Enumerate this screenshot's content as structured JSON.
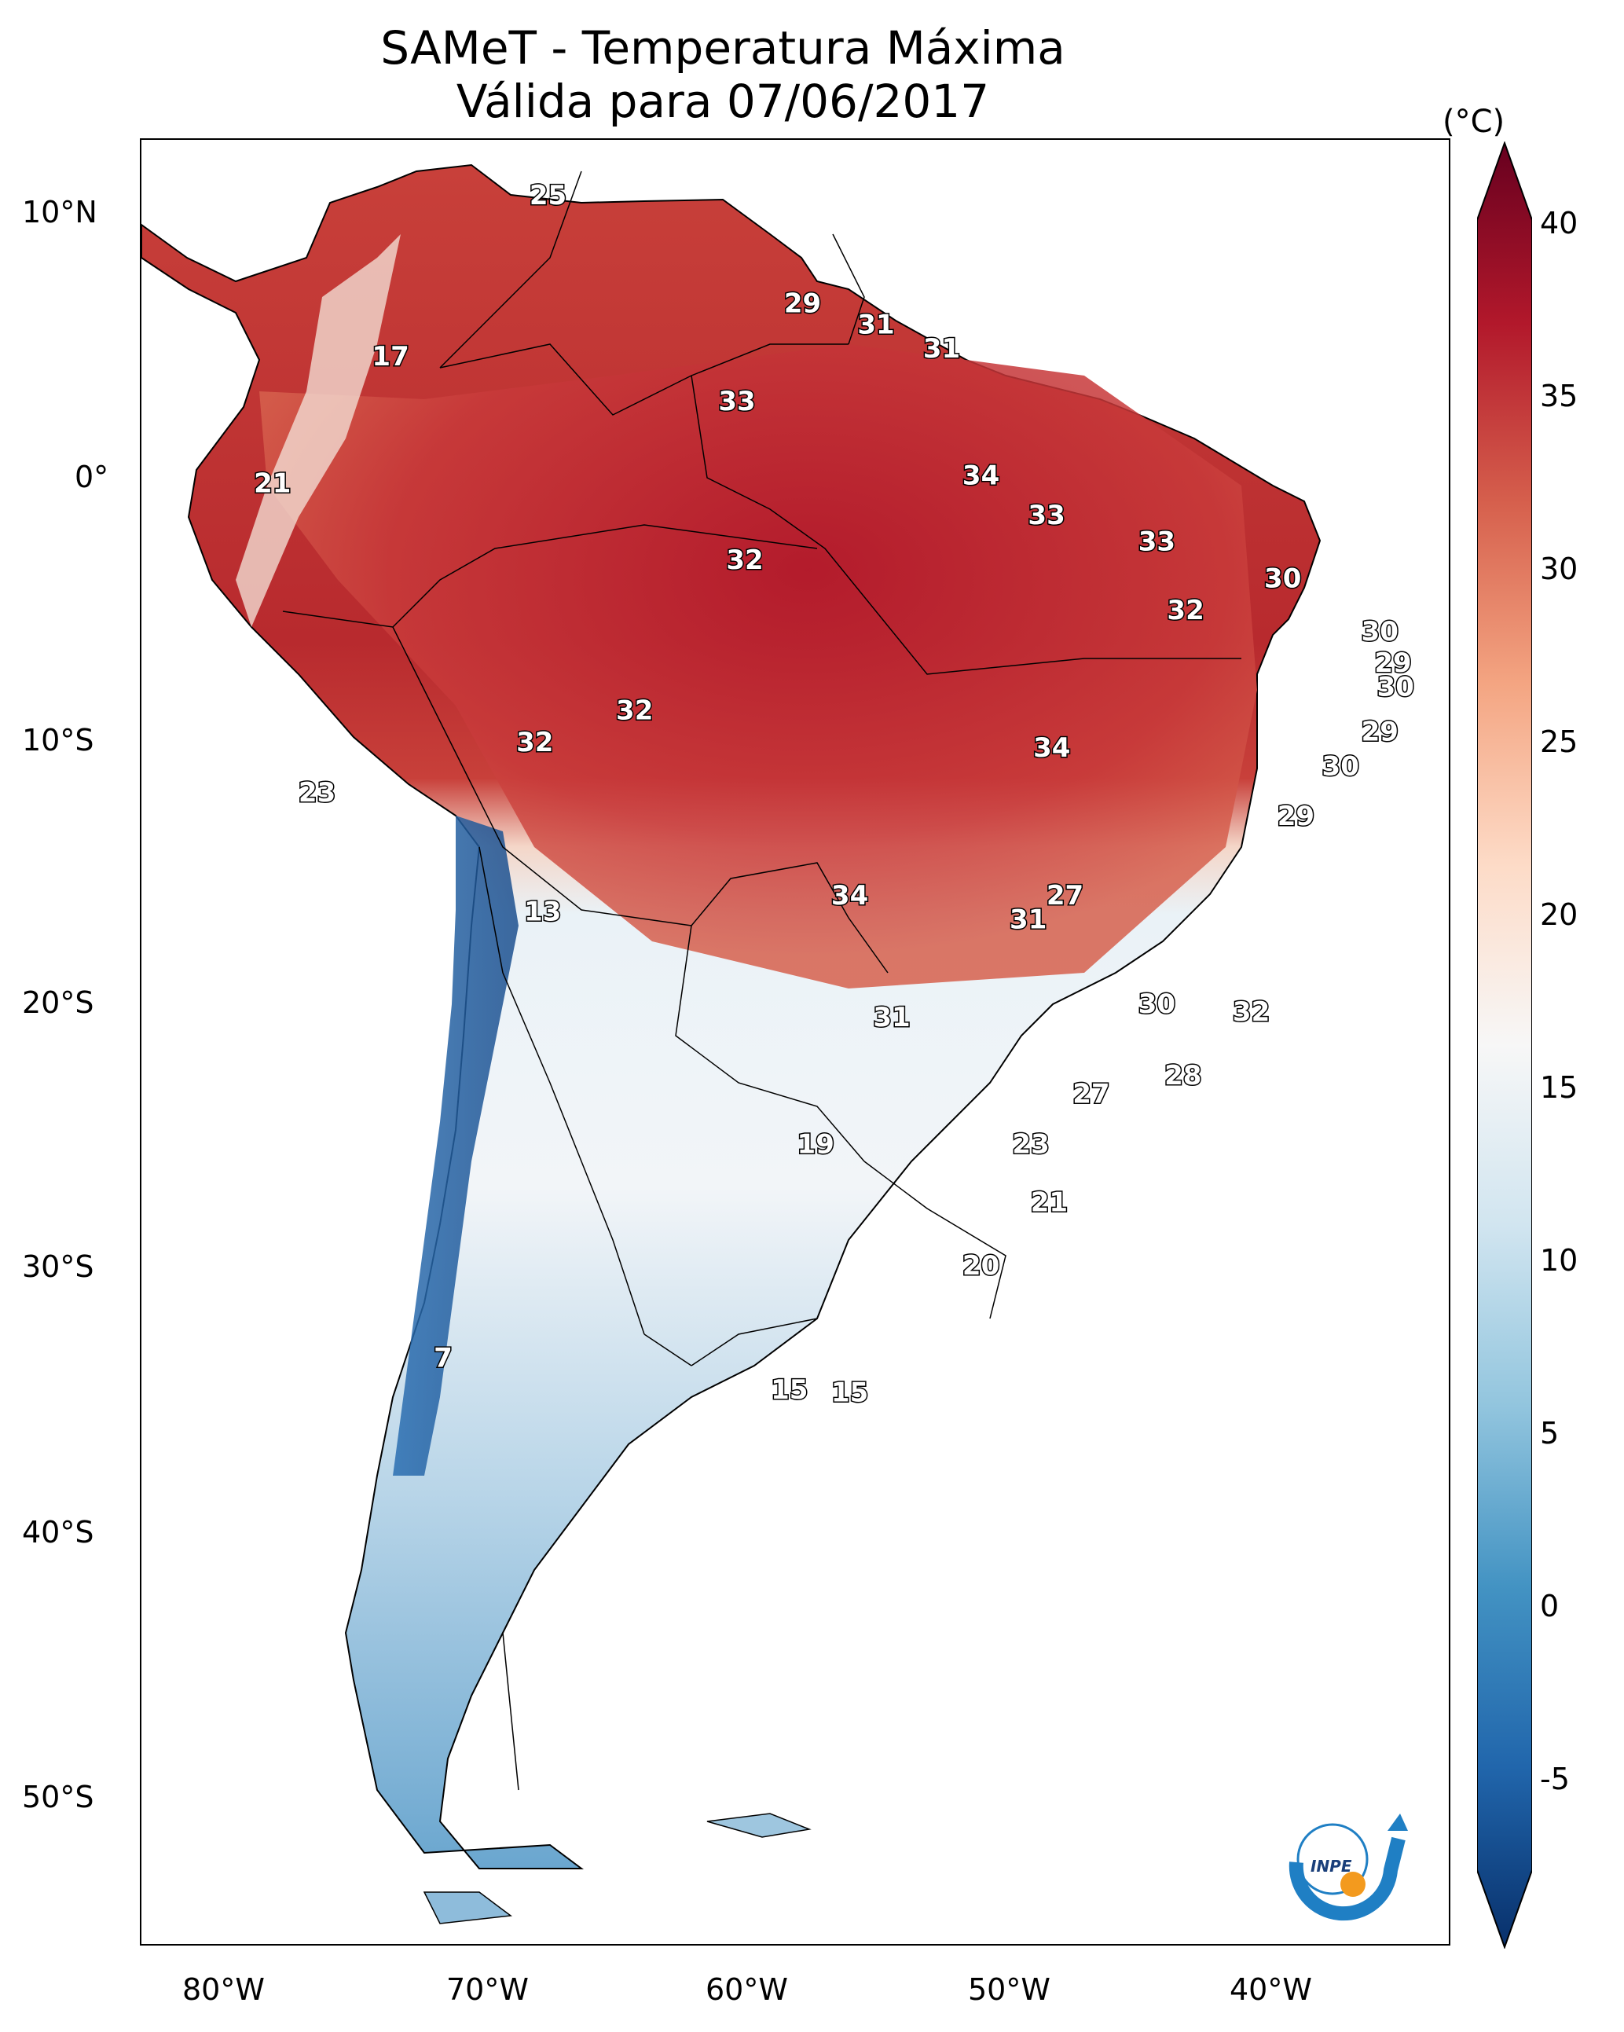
{
  "title": {
    "line1": "SAMeT - Temperatura Máxima",
    "line2": "Válida para 07/06/2017"
  },
  "axes": {
    "lat_labels": [
      "10°N",
      "0°",
      "10°S",
      "20°S",
      "30°S",
      "40°S",
      "50°S"
    ],
    "lon_labels": [
      "80°W",
      "70°W",
      "60°W",
      "50°W",
      "40°W"
    ]
  },
  "colorbar": {
    "unit": "(°C)",
    "ticks": [
      "40",
      "35",
      "30",
      "25",
      "20",
      "15",
      "10",
      "5",
      "0",
      "-5"
    ],
    "range": [
      -5,
      40
    ],
    "colors": [
      "#08306b",
      "#2166ac",
      "#4393c3",
      "#92c5de",
      "#d1e5f0",
      "#f7f7f7",
      "#fddbc7",
      "#f4a582",
      "#d6604d",
      "#b2182b",
      "#67001f"
    ]
  },
  "map_values": [
    {
      "text": "25",
      "lon": -67.5,
      "lat": 10.6
    },
    {
      "text": "29",
      "lon": -57.8,
      "lat": 6.5
    },
    {
      "text": "31",
      "lon": -55.0,
      "lat": 5.7
    },
    {
      "text": "31",
      "lon": -52.5,
      "lat": 4.8
    },
    {
      "text": "17",
      "lon": -73.5,
      "lat": 4.5
    },
    {
      "text": "33",
      "lon": -60.3,
      "lat": 2.8
    },
    {
      "text": "21",
      "lon": -78.0,
      "lat": -0.3
    },
    {
      "text": "34",
      "lon": -51.0,
      "lat": 0.0
    },
    {
      "text": "33",
      "lon": -48.5,
      "lat": -1.5
    },
    {
      "text": "33",
      "lon": -44.3,
      "lat": -2.5
    },
    {
      "text": "32",
      "lon": -60.0,
      "lat": -3.2
    },
    {
      "text": "30",
      "lon": -39.5,
      "lat": -3.9
    },
    {
      "text": "32",
      "lon": -43.2,
      "lat": -5.1
    },
    {
      "text": "30",
      "lon": -35.8,
      "lat": -5.9
    },
    {
      "text": "29",
      "lon": -35.3,
      "lat": -7.1
    },
    {
      "text": "30",
      "lon": -35.2,
      "lat": -8.0
    },
    {
      "text": "32",
      "lon": -64.2,
      "lat": -8.9
    },
    {
      "text": "29",
      "lon": -35.8,
      "lat": -9.7
    },
    {
      "text": "32",
      "lon": -68.0,
      "lat": -10.1
    },
    {
      "text": "34",
      "lon": -48.3,
      "lat": -10.3
    },
    {
      "text": "30",
      "lon": -37.3,
      "lat": -11.0
    },
    {
      "text": "29",
      "lon": -39.0,
      "lat": -12.9
    },
    {
      "text": "23",
      "lon": -76.3,
      "lat": -12.0
    },
    {
      "text": "34",
      "lon": -56.0,
      "lat": -15.9
    },
    {
      "text": "27",
      "lon": -47.8,
      "lat": -15.9
    },
    {
      "text": "31",
      "lon": -49.2,
      "lat": -16.8
    },
    {
      "text": "13",
      "lon": -67.7,
      "lat": -16.5
    },
    {
      "text": "30",
      "lon": -44.3,
      "lat": -20.0
    },
    {
      "text": "32",
      "lon": -40.7,
      "lat": -20.3
    },
    {
      "text": "31",
      "lon": -54.4,
      "lat": -20.5
    },
    {
      "text": "28",
      "lon": -43.3,
      "lat": -22.7
    },
    {
      "text": "27",
      "lon": -46.8,
      "lat": -23.4
    },
    {
      "text": "19",
      "lon": -57.3,
      "lat": -25.3
    },
    {
      "text": "23",
      "lon": -49.1,
      "lat": -25.3
    },
    {
      "text": "21",
      "lon": -48.4,
      "lat": -27.5
    },
    {
      "text": "20",
      "lon": -51.0,
      "lat": -29.9
    },
    {
      "text": "7",
      "lon": -71.5,
      "lat": -33.4
    },
    {
      "text": "15",
      "lon": -58.3,
      "lat": -34.6
    },
    {
      "text": "15",
      "lon": -56.0,
      "lat": -34.7
    }
  ],
  "logo": {
    "text": "INPE"
  }
}
